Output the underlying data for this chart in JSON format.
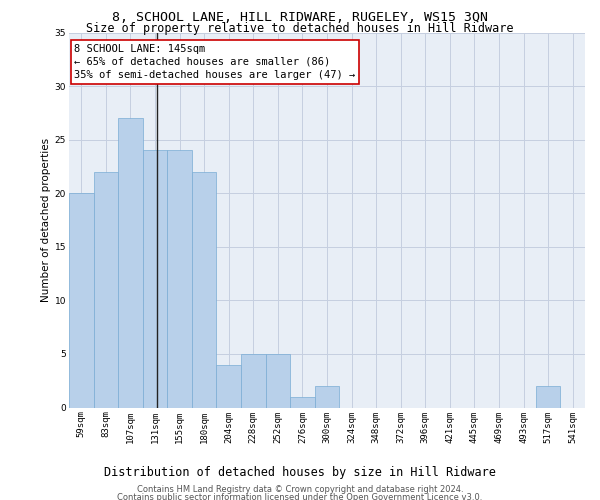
{
  "title": "8, SCHOOL LANE, HILL RIDWARE, RUGELEY, WS15 3QN",
  "subtitle": "Size of property relative to detached houses in Hill Ridware",
  "xlabel": "Distribution of detached houses by size in Hill Ridware",
  "ylabel": "Number of detached properties",
  "categories": [
    "59sqm",
    "83sqm",
    "107sqm",
    "131sqm",
    "155sqm",
    "180sqm",
    "204sqm",
    "228sqm",
    "252sqm",
    "276sqm",
    "300sqm",
    "324sqm",
    "348sqm",
    "372sqm",
    "396sqm",
    "421sqm",
    "445sqm",
    "469sqm",
    "493sqm",
    "517sqm",
    "541sqm"
  ],
  "values": [
    20,
    22,
    27,
    24,
    24,
    22,
    4,
    5,
    5,
    1,
    2,
    0,
    0,
    0,
    0,
    0,
    0,
    0,
    0,
    2,
    0
  ],
  "bar_color": "#b8d0ea",
  "bar_edge_color": "#7aacd4",
  "vline_color": "#222222",
  "annotation_line1": "8 SCHOOL LANE: 145sqm",
  "annotation_line2": "← 65% of detached houses are smaller (86)",
  "annotation_line3": "35% of semi-detached houses are larger (47) →",
  "annotation_box_color": "#ffffff",
  "annotation_box_edge_color": "#cc0000",
  "ylim": [
    0,
    35
  ],
  "yticks": [
    0,
    5,
    10,
    15,
    20,
    25,
    30,
    35
  ],
  "plot_bg_color": "#e8eef6",
  "grid_color": "#c5cfe0",
  "footer1": "Contains HM Land Registry data © Crown copyright and database right 2024.",
  "footer2": "Contains public sector information licensed under the Open Government Licence v3.0.",
  "title_fontsize": 9.5,
  "subtitle_fontsize": 8.5,
  "xlabel_fontsize": 8.5,
  "ylabel_fontsize": 7.5,
  "tick_fontsize": 6.5,
  "annotation_fontsize": 7.5,
  "footer_fontsize": 6.0
}
